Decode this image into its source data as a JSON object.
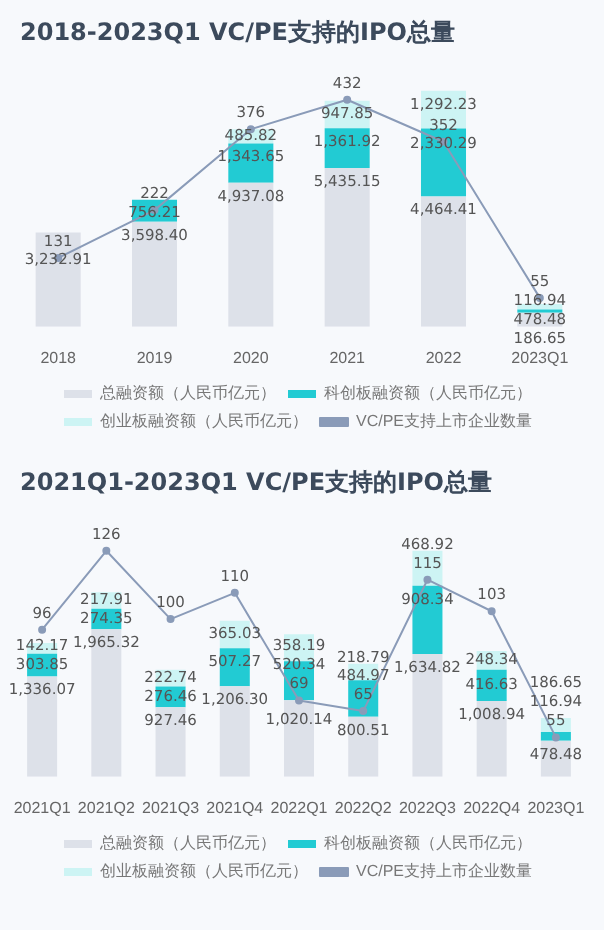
{
  "chart_data": [
    {
      "type": "bar",
      "title": "2018-2023Q1 VC/PE支持的IPO总量",
      "categories": [
        "2018",
        "2019",
        "2020",
        "2021",
        "2022",
        "2023Q1"
      ],
      "stacked": true,
      "legend": "bottom",
      "grid": false,
      "tick_labels": "x",
      "series": [
        {
          "name": "总融资额（人民币亿元）",
          "color": "#dde1e9",
          "values": [
            3232.91,
            3598.4,
            4937.08,
            5435.15,
            4464.41,
            478.48
          ],
          "value_labels": [
            "3,232.91",
            "3,598.40",
            "4,937.08",
            "5,435.15",
            "4,464.41",
            "478.48"
          ]
        },
        {
          "name": "科创板融资额（人民币亿元）",
          "color": "#22cbd3",
          "values": [
            null,
            756.21,
            1343.65,
            1361.92,
            2330.29,
            116.94
          ],
          "value_labels": [
            null,
            "756.21",
            "1,343.65",
            "1,361.92",
            "2,330.29",
            "116.94"
          ]
        },
        {
          "name": "创业板融资额（人民币亿元）",
          "color": "#cdf4f4",
          "values": [
            null,
            null,
            485.82,
            947.85,
            1292.23,
            186.65
          ],
          "value_labels": [
            null,
            null,
            "485.82",
            "947.85",
            "1,292.23",
            "186.65"
          ]
        },
        {
          "name": "VC/PE支持上市企业数量",
          "type": "line",
          "axis": "y2",
          "marker": "circle",
          "color": "#8a9bb8",
          "values": [
            131,
            222,
            376,
            432,
            352,
            55
          ],
          "value_labels": [
            "131",
            "222",
            "376",
            "432",
            "352",
            "55"
          ]
        }
      ]
    },
    {
      "type": "bar",
      "title": "2021Q1-2023Q1 VC/PE支持的IPO总量",
      "categories": [
        "2021Q1",
        "2021Q2",
        "2021Q3",
        "2021Q4",
        "2022Q1",
        "2022Q2",
        "2022Q3",
        "2022Q4",
        "2023Q1"
      ],
      "stacked": true,
      "legend": "bottom",
      "grid": false,
      "tick_labels": "x",
      "series": [
        {
          "name": "总融资额（人民币亿元）",
          "color": "#dde1e9",
          "values": [
            1336.07,
            1965.32,
            927.46,
            1206.3,
            1020.14,
            800.51,
            1634.82,
            1008.94,
            478.48
          ],
          "value_labels": [
            "1,336.07",
            "1,965.32",
            "927.46",
            "1,206.30",
            "1,020.14",
            "800.51",
            "1,634.82",
            "1,008.94",
            "478.48"
          ]
        },
        {
          "name": "科创板融资额（人民币亿元）",
          "color": "#22cbd3",
          "values": [
            303.85,
            274.35,
            276.46,
            507.27,
            520.34,
            484.97,
            908.34,
            416.63,
            116.94
          ],
          "value_labels": [
            "303.85",
            "274.35",
            "276.46",
            "507.27",
            "520.34",
            "484.97",
            "908.34",
            "416.63",
            "116.94"
          ]
        },
        {
          "name": "创业板融资额（人民币亿元）",
          "color": "#cdf4f4",
          "values": [
            142.17,
            217.91,
            222.74,
            365.03,
            358.19,
            218.79,
            468.92,
            248.34,
            186.65
          ],
          "value_labels": [
            "142.17",
            "217.91",
            "222.74",
            "365.03",
            "358.19",
            "218.79",
            "468.92",
            "248.34",
            "186.65"
          ]
        },
        {
          "name": "VC/PE支持上市企业数量",
          "type": "line",
          "axis": "y2",
          "marker": "circle",
          "color": "#8a9bb8",
          "values": [
            96,
            126,
            100,
            110,
            69,
            65,
            115,
            103,
            55
          ],
          "value_labels": [
            "96",
            "126",
            "100",
            "110",
            "69",
            "65",
            "115",
            "103",
            "55"
          ]
        }
      ]
    }
  ]
}
